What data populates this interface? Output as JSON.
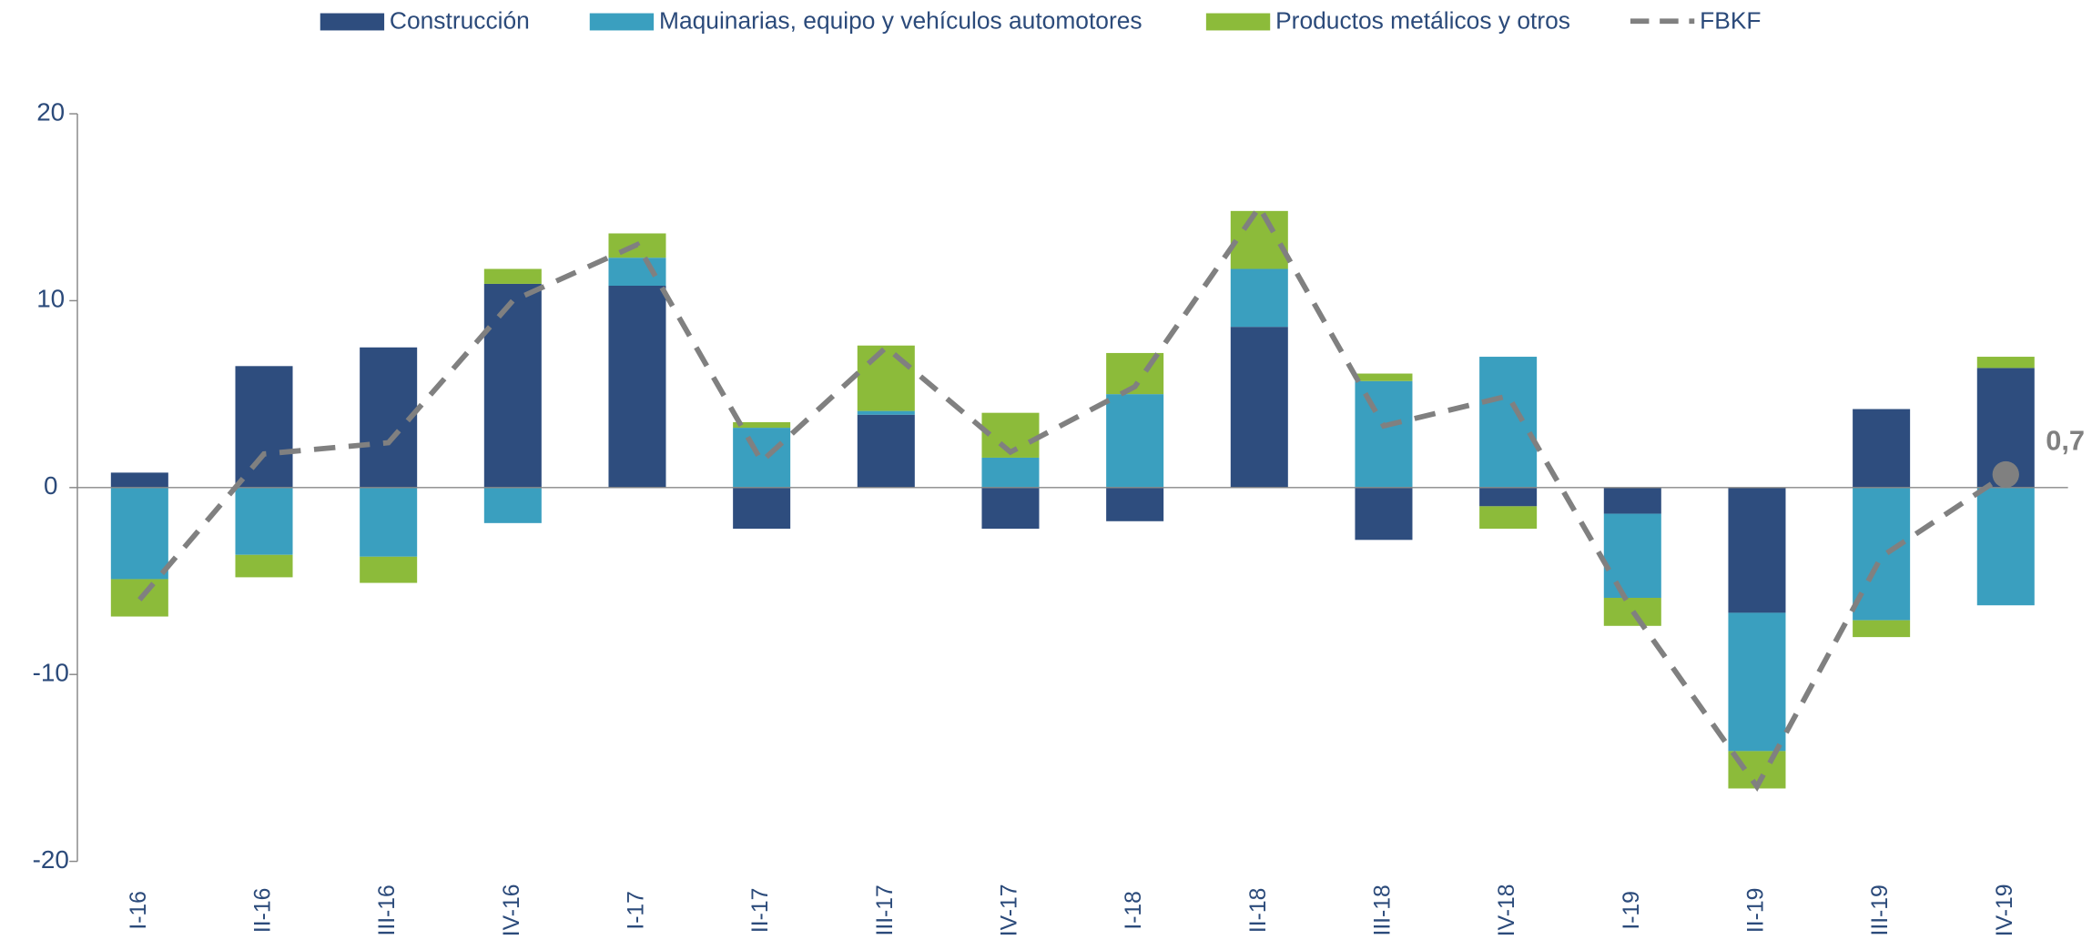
{
  "chart_data": {
    "type": "bar",
    "stacked": true,
    "categories": [
      "I-16",
      "II-16",
      "III-16",
      "IV-16",
      "I-17",
      "II-17",
      "III-17",
      "IV-17",
      "I-18",
      "II-18",
      "III-18",
      "IV-18",
      "I-19",
      "II-19",
      "III-19",
      "IV-19"
    ],
    "series": [
      {
        "name": "Construcción",
        "type": "bar",
        "color": "#2e4d7e",
        "values": [
          0.8,
          6.5,
          7.5,
          10.9,
          10.8,
          -2.2,
          3.9,
          -2.2,
          -1.8,
          8.6,
          -2.8,
          -1.0,
          -1.4,
          -6.7,
          4.2,
          6.4
        ]
      },
      {
        "name": "Maquinarias, equipo y vehículos automotores",
        "type": "bar",
        "color": "#3a9fbf",
        "values": [
          -4.9,
          -3.6,
          -3.7,
          -1.9,
          1.5,
          3.2,
          0.2,
          1.6,
          5.0,
          3.1,
          5.7,
          7.0,
          -4.5,
          -7.4,
          -7.1,
          -6.3
        ]
      },
      {
        "name": "Productos metálicos y otros",
        "type": "bar",
        "color": "#8cbb3a",
        "values": [
          -2.0,
          -1.2,
          -1.4,
          0.8,
          1.3,
          0.3,
          3.5,
          2.4,
          2.2,
          3.1,
          0.4,
          -1.2,
          -1.5,
          -2.0,
          -0.9,
          0.6
        ]
      },
      {
        "name": "FBKF",
        "type": "line",
        "dashed": true,
        "color": "#808080",
        "values": [
          -6.0,
          1.8,
          2.4,
          10.0,
          13.0,
          1.4,
          7.5,
          1.9,
          5.4,
          15.0,
          3.3,
          4.9,
          -6.6,
          -16.0,
          -3.7,
          0.7
        ],
        "value_labels": [
          null,
          null,
          null,
          null,
          null,
          null,
          null,
          null,
          null,
          null,
          null,
          null,
          null,
          null,
          null,
          "0,7"
        ]
      }
    ],
    "ylim": [
      -20,
      20
    ],
    "yticks": [
      -20,
      -10,
      0,
      10,
      20
    ],
    "legend": "top"
  }
}
